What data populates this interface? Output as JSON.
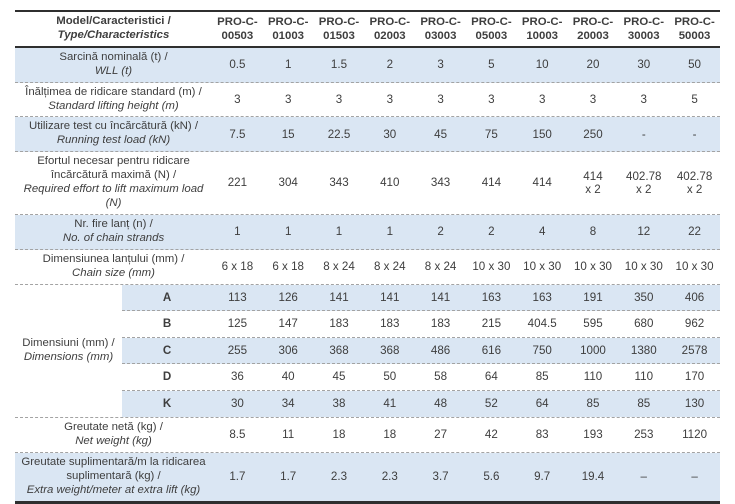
{
  "table": {
    "colors": {
      "row_shade": "#dae6f3",
      "solid_border": "#2f2f2f",
      "dashed_border": "#a3a3a3",
      "text": "#3e3e3e"
    },
    "header": {
      "label_ro": "Model/Caracteristici /",
      "label_en": "Type/Characteristics",
      "columns": [
        {
          "line1": "PRO-C-",
          "line2": "00503"
        },
        {
          "line1": "PRO-C-",
          "line2": "01003"
        },
        {
          "line1": "PRO-C-",
          "line2": "01503"
        },
        {
          "line1": "PRO-C-",
          "line2": "02003"
        },
        {
          "line1": "PRO-C-",
          "line2": "03003"
        },
        {
          "line1": "PRO-C-",
          "line2": "05003"
        },
        {
          "line1": "PRO-C-",
          "line2": "10003"
        },
        {
          "line1": "PRO-C-",
          "line2": "20003"
        },
        {
          "line1": "PRO-C-",
          "line2": "30003"
        },
        {
          "line1": "PRO-C-",
          "line2": "50003"
        }
      ]
    },
    "rows_top": [
      {
        "label_ro": "Sarcină nominală (t) /",
        "label_en": "WLL (t)",
        "shaded": true,
        "values": [
          "0.5",
          "1",
          "1.5",
          "2",
          "3",
          "5",
          "10",
          "20",
          "30",
          "50"
        ]
      },
      {
        "label_ro": "Înălțimea de ridicare standard (m) /",
        "label_en": "Standard lifting height (m)",
        "shaded": false,
        "values": [
          "3",
          "3",
          "3",
          "3",
          "3",
          "3",
          "3",
          "3",
          "3",
          "5"
        ]
      },
      {
        "label_ro": "Utilizare test cu încărcătură (kN) /",
        "label_en": "Running test load (kN)",
        "shaded": true,
        "values": [
          "7.5",
          "15",
          "22.5",
          "30",
          "45",
          "75",
          "150",
          "250",
          "-",
          "-"
        ]
      },
      {
        "label_ro": "Efortul necesar pentru ridicare încărcătură maximă (N) /",
        "label_en": "Required effort to lift maximum load (N)",
        "shaded": false,
        "values": [
          "221",
          "304",
          "343",
          "410",
          "343",
          "414",
          "414",
          "414\nx 2",
          "402.78\nx 2",
          "402.78\nx 2"
        ]
      },
      {
        "label_ro": "Nr. fire lanț (n) /",
        "label_en": "No. of chain strands",
        "shaded": true,
        "values": [
          "1",
          "1",
          "1",
          "1",
          "2",
          "2",
          "4",
          "8",
          "12",
          "22"
        ]
      },
      {
        "label_ro": "Dimensiunea lanțului (mm) /",
        "label_en": "Chain size (mm)",
        "shaded": false,
        "values": [
          "6 x 18",
          "6 x 18",
          "8 x 24",
          "8 x 24",
          "8 x 24",
          "10 x 30",
          "10 x 30",
          "10 x 30",
          "10 x 30",
          "10 x 30"
        ]
      }
    ],
    "dimensions": {
      "label_ro": "Dimensiuni (mm) /",
      "label_en": "Dimensions (mm)",
      "rows": [
        {
          "letter": "A",
          "shaded": true,
          "values": [
            "113",
            "126",
            "141",
            "141",
            "141",
            "163",
            "163",
            "191",
            "350",
            "406"
          ]
        },
        {
          "letter": "B",
          "shaded": false,
          "values": [
            "125",
            "147",
            "183",
            "183",
            "183",
            "215",
            "404.5",
            "595",
            "680",
            "962"
          ]
        },
        {
          "letter": "C",
          "shaded": true,
          "values": [
            "255",
            "306",
            "368",
            "368",
            "486",
            "616",
            "750",
            "1000",
            "1380",
            "2578"
          ]
        },
        {
          "letter": "D",
          "shaded": false,
          "values": [
            "36",
            "40",
            "45",
            "50",
            "58",
            "64",
            "85",
            "110",
            "110",
            "170"
          ]
        },
        {
          "letter": "K",
          "shaded": true,
          "values": [
            "30",
            "34",
            "38",
            "41",
            "48",
            "52",
            "64",
            "85",
            "85",
            "130"
          ]
        }
      ]
    },
    "rows_bottom": [
      {
        "label_ro": "Greutate netă (kg) /",
        "label_en": "Net weight (kg)",
        "shaded": false,
        "values": [
          "8.5",
          "11",
          "18",
          "18",
          "27",
          "42",
          "83",
          "193",
          "253",
          "1120"
        ]
      },
      {
        "label_ro": "Greutate suplimentară/m la ridicarea suplimentară (kg) /",
        "label_en": "Extra weight/meter at extra lift (kg)",
        "shaded": true,
        "values": [
          "1.7",
          "1.7",
          "2.3",
          "2.3",
          "3.7",
          "5.6",
          "9.7",
          "19.4",
          "–",
          "–"
        ]
      }
    ]
  }
}
